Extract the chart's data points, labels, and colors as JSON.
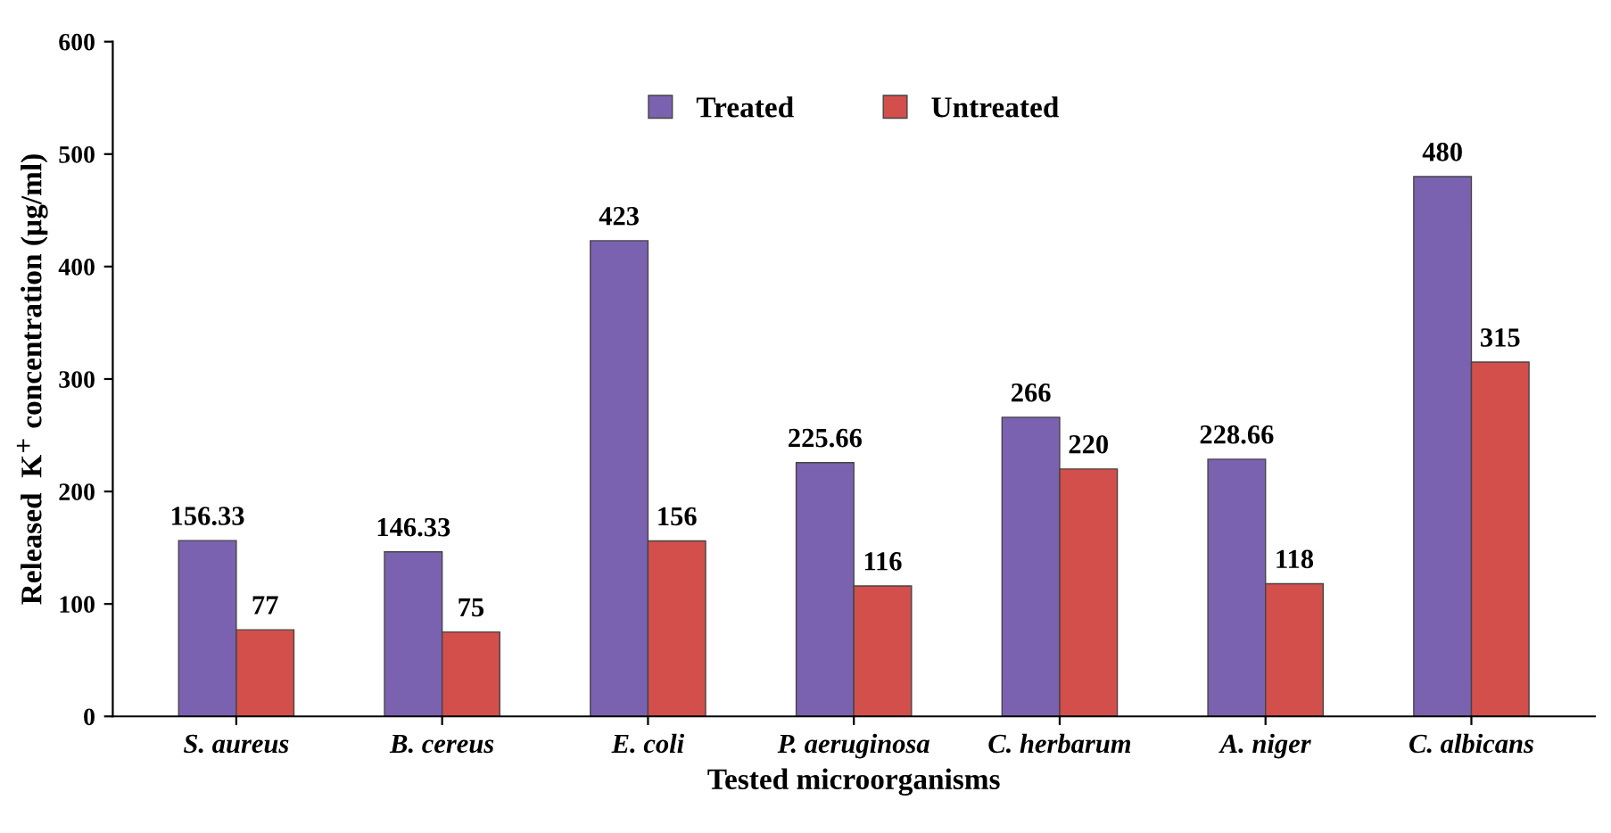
{
  "chart_data": {
    "type": "bar",
    "categories": [
      "S. aureus",
      "B. cereus",
      "E. coli",
      "P. aeruginosa",
      "C. herbarum",
      "A. niger",
      "C. albicans"
    ],
    "series": [
      {
        "name": "Treated",
        "color": "#7b62b0",
        "values": [
          156.33,
          146.33,
          423,
          225.66,
          266,
          228.66,
          480
        ]
      },
      {
        "name": "Untreated",
        "color": "#d24f4b",
        "values": [
          77,
          75,
          156,
          116,
          220,
          118,
          315
        ]
      }
    ],
    "xlabel": "Tested microorganisms",
    "ylabel": "Released  K$^{+}$ concentration (µg/ml)",
    "ylim": [
      0,
      600
    ],
    "yticks": [
      0,
      100,
      200,
      300,
      400,
      500,
      600
    ],
    "data_labels": true,
    "legend": "top",
    "grid": false
  }
}
